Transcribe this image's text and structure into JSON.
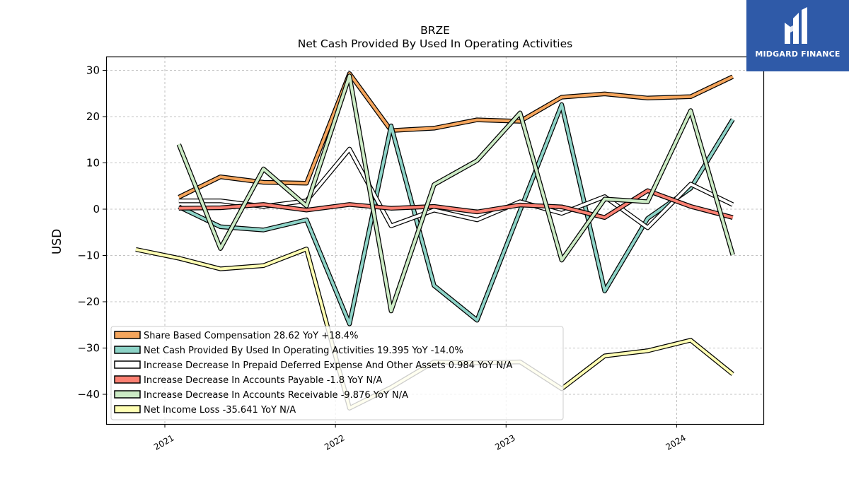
{
  "chart_data": {
    "type": "line",
    "title": "BRZE",
    "subtitle": "Net Cash Provided By Used In Operating Activities",
    "ylabel": "USD",
    "xlabel": "",
    "ylim": [
      -46,
      33
    ],
    "yticks": [
      30,
      20,
      10,
      0,
      -10,
      -20,
      -30,
      -40
    ],
    "ytick_labels": [
      "30",
      "20",
      "10",
      "0",
      "−10",
      "−20",
      "−30",
      "−40"
    ],
    "xticks": [
      2021,
      2022,
      2023,
      2024
    ],
    "xtick_labels": [
      "2021",
      "2022",
      "2023",
      "2024"
    ],
    "grid": true,
    "legend_position": "lower-left",
    "series": [
      {
        "name": "Share Based Compensation",
        "legend": "Share Based Compensation  28.62 YoY +18.4%",
        "color": "#f5a55c",
        "points": [
          [
            "2021-01-31",
            2.6
          ],
          [
            "2021-04-30",
            7.0
          ],
          [
            "2021-07-31",
            5.8
          ],
          [
            "2021-10-31",
            5.6
          ],
          [
            "2022-01-31",
            29.3
          ],
          [
            "2022-04-30",
            17.0
          ],
          [
            "2022-07-31",
            17.5
          ],
          [
            "2022-10-31",
            19.3
          ],
          [
            "2023-01-31",
            19.0
          ],
          [
            "2023-04-30",
            24.2
          ],
          [
            "2023-07-31",
            24.9
          ],
          [
            "2023-10-31",
            24.0
          ],
          [
            "2024-01-31",
            24.3
          ],
          [
            "2024-04-30",
            28.62
          ]
        ]
      },
      {
        "name": "Net Cash Provided By Used In Operating Activities",
        "legend": "Net Cash Provided By Used In Operating Activities  19.395 YoY -14.0%",
        "color": "#8dd3c7",
        "points": [
          [
            "2021-01-31",
            0.5
          ],
          [
            "2021-04-30",
            -3.8
          ],
          [
            "2021-07-31",
            -4.5
          ],
          [
            "2021-10-31",
            -2.3
          ],
          [
            "2022-01-31",
            -24.8
          ],
          [
            "2022-04-30",
            18.0
          ],
          [
            "2022-07-31",
            -16.5
          ],
          [
            "2022-10-31",
            -24.0
          ],
          [
            "2023-01-31",
            -0.3
          ],
          [
            "2023-04-30",
            22.6
          ],
          [
            "2023-07-31",
            -17.7
          ],
          [
            "2023-10-31",
            -2.0
          ],
          [
            "2024-01-31",
            4.5
          ],
          [
            "2024-04-30",
            19.395
          ]
        ]
      },
      {
        "name": "Increase Decrease In Prepaid Deferred Expense And Other Assets",
        "legend": "Increase Decrease In Prepaid Deferred Expense And Other Assets  0.984 YoY N/A",
        "color": "#ffffff",
        "points": [
          [
            "2021-01-31",
            1.8
          ],
          [
            "2021-04-30",
            1.8
          ],
          [
            "2021-07-31",
            0.6
          ],
          [
            "2021-10-31",
            1.8
          ],
          [
            "2022-01-31",
            13.0
          ],
          [
            "2022-04-30",
            -3.6
          ],
          [
            "2022-07-31",
            -0.2
          ],
          [
            "2022-10-31",
            -2.3
          ],
          [
            "2023-01-31",
            1.6
          ],
          [
            "2023-04-30",
            -0.9
          ],
          [
            "2023-07-31",
            2.7
          ],
          [
            "2023-10-31",
            -4.0
          ],
          [
            "2024-01-31",
            5.4
          ],
          [
            "2024-04-30",
            0.984
          ]
        ]
      },
      {
        "name": "Increase Decrease In Accounts Payable",
        "legend": "Increase Decrease In Accounts Payable  -1.8 YoY N/A",
        "color": "#fb8072",
        "points": [
          [
            "2021-01-31",
            0.2
          ],
          [
            "2021-04-30",
            0.3
          ],
          [
            "2021-07-31",
            1.0
          ],
          [
            "2021-10-31",
            -0.2
          ],
          [
            "2022-01-31",
            1.0
          ],
          [
            "2022-04-30",
            0.2
          ],
          [
            "2022-07-31",
            0.6
          ],
          [
            "2022-10-31",
            -0.6
          ],
          [
            "2023-01-31",
            0.9
          ],
          [
            "2023-04-30",
            0.5
          ],
          [
            "2023-07-31",
            -1.8
          ],
          [
            "2023-10-31",
            4.0
          ],
          [
            "2024-01-31",
            0.6
          ],
          [
            "2024-04-30",
            -1.8
          ]
        ]
      },
      {
        "name": "Increase Decrease In Accounts Receivable",
        "legend": "Increase Decrease In Accounts Receivable  -9.876 YoY N/A",
        "color": "#ccebc5",
        "points": [
          [
            "2021-01-31",
            14.0
          ],
          [
            "2021-04-30",
            -8.5
          ],
          [
            "2021-07-31",
            8.7
          ],
          [
            "2021-10-31",
            0.7
          ],
          [
            "2022-01-31",
            28.8
          ],
          [
            "2022-04-30",
            -22.0
          ],
          [
            "2022-07-31",
            5.3
          ],
          [
            "2022-10-31",
            10.5
          ],
          [
            "2023-01-31",
            20.8
          ],
          [
            "2023-04-30",
            -11.0
          ],
          [
            "2023-07-31",
            2.2
          ],
          [
            "2023-10-31",
            1.6
          ],
          [
            "2024-01-31",
            21.3
          ],
          [
            "2024-04-30",
            -9.876
          ]
        ]
      },
      {
        "name": "Net Income Loss",
        "legend": "Net Income Loss  -35.641 YoY N/A",
        "color": "#ffffb3",
        "points": [
          [
            "2020-10-31",
            -8.7
          ],
          [
            "2021-01-31",
            -10.6
          ],
          [
            "2021-04-30",
            -12.9
          ],
          [
            "2021-07-31",
            -12.2
          ],
          [
            "2021-10-31",
            -8.6
          ],
          [
            "2022-01-31",
            -43.0
          ],
          [
            "2022-04-30",
            -38.5
          ],
          [
            "2022-07-31",
            -33.0
          ],
          [
            "2022-10-31",
            -33.2
          ],
          [
            "2023-01-31",
            -33.0
          ],
          [
            "2023-04-30",
            -38.8
          ],
          [
            "2023-07-31",
            -31.7
          ],
          [
            "2023-10-31",
            -30.6
          ],
          [
            "2024-01-31",
            -28.3
          ],
          [
            "2024-04-30",
            -35.641
          ]
        ]
      }
    ]
  },
  "logo": {
    "text": "MIDGARD FINANCE",
    "background": "#2f5aa8",
    "icon": "midgard-m-logo-icon"
  }
}
